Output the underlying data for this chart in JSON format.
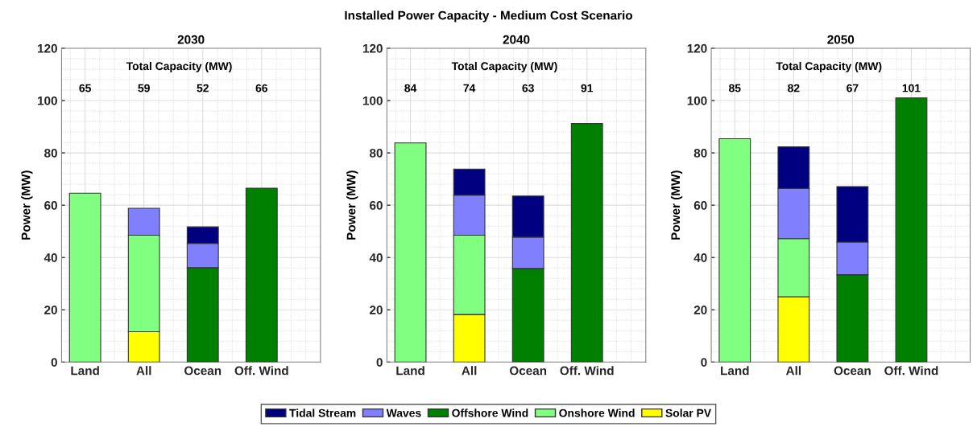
{
  "chart_data": [
    {
      "type": "other",
      "title": "Installed Power Capacity - Medium Cost Scenario"
    },
    {
      "type": "bar",
      "title": "2030",
      "ylabel": "Power (MW)",
      "categories": [
        "Land",
        "All",
        "Ocean",
        "Off. Wind"
      ],
      "stacked": true,
      "ylim": [
        0,
        120
      ],
      "yticks": [
        0,
        20,
        40,
        60,
        80,
        100,
        120
      ],
      "grid": true,
      "legend": "bottom",
      "annotations": [
        "Total Capacity (MW)",
        "65",
        "59",
        "52",
        "66"
      ],
      "series": [
        {
          "name": "Solar PV",
          "color": "#ffff00",
          "values": [
            null,
            11.6,
            null,
            null
          ]
        },
        {
          "name": "Onshore Wind",
          "color": "#80ff80",
          "values": [
            64.6,
            36.9,
            null,
            null
          ]
        },
        {
          "name": "Offshore Wind",
          "color": "#008000",
          "values": [
            null,
            null,
            36.1,
            66.5
          ]
        },
        {
          "name": "Waves",
          "color": "#8080ff",
          "values": [
            null,
            10.3,
            9.3,
            null
          ]
        },
        {
          "name": "Tidal Stream",
          "color": "#000080",
          "values": [
            null,
            null,
            6.3,
            null
          ]
        }
      ]
    },
    {
      "type": "bar",
      "title": "2040",
      "ylabel": "Power (MW)",
      "categories": [
        "Land",
        "All",
        "Ocean",
        "Off. Wind"
      ],
      "stacked": true,
      "ylim": [
        0,
        120
      ],
      "yticks": [
        0,
        20,
        40,
        60,
        80,
        100,
        120
      ],
      "grid": true,
      "annotations": [
        "Total Capacity (MW)",
        "84",
        "74",
        "63",
        "91"
      ],
      "series": [
        {
          "color": "#ffff00",
          "values": [
            null,
            18.2,
            null,
            null
          ]
        },
        {
          "color": "#80ff80",
          "values": [
            83.8,
            30.3,
            null,
            null
          ]
        },
        {
          "color": "#008000",
          "values": [
            null,
            null,
            35.8,
            91.2
          ]
        },
        {
          "color": "#8080ff",
          "values": [
            null,
            15.3,
            12.0,
            null
          ]
        },
        {
          "color": "#000080",
          "values": [
            null,
            10.0,
            15.7,
            null
          ]
        }
      ]
    },
    {
      "type": "bar",
      "title": "2050",
      "ylabel": "Power (MW)",
      "categories": [
        "Land",
        "All",
        "Ocean",
        "Off. Wind"
      ],
      "stacked": true,
      "ylim": [
        0,
        120
      ],
      "yticks": [
        0,
        20,
        40,
        60,
        80,
        100,
        120
      ],
      "grid": true,
      "annotations": [
        "Total Capacity (MW)",
        "85",
        "82",
        "67",
        "101"
      ],
      "series": [
        {
          "color": "#ffff00",
          "values": [
            null,
            25.0,
            null,
            null
          ]
        },
        {
          "color": "#80ff80",
          "values": [
            85.4,
            22.2,
            null,
            null
          ]
        },
        {
          "color": "#008000",
          "values": [
            null,
            null,
            33.4,
            101.0
          ]
        },
        {
          "color": "#8080ff",
          "values": [
            null,
            19.2,
            12.5,
            null
          ]
        },
        {
          "color": "#000080",
          "values": [
            null,
            15.9,
            21.2,
            null
          ]
        }
      ]
    }
  ]
}
